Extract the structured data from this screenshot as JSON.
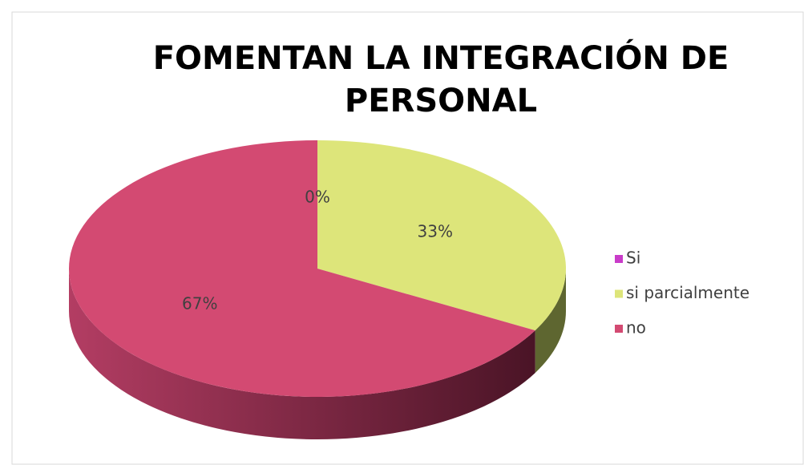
{
  "chart_data": {
    "type": "pie",
    "title": "FOMENTAN LA INTEGRACIÓN DE PERSONAL",
    "categories": [
      "Si",
      "si parcialmente",
      "no"
    ],
    "values": [
      0,
      33,
      67
    ],
    "value_labels": [
      "0%",
      "33%",
      "67%"
    ],
    "colors": [
      "#c93cc9",
      "#dde57a",
      "#d34a72"
    ],
    "legend": "right"
  }
}
